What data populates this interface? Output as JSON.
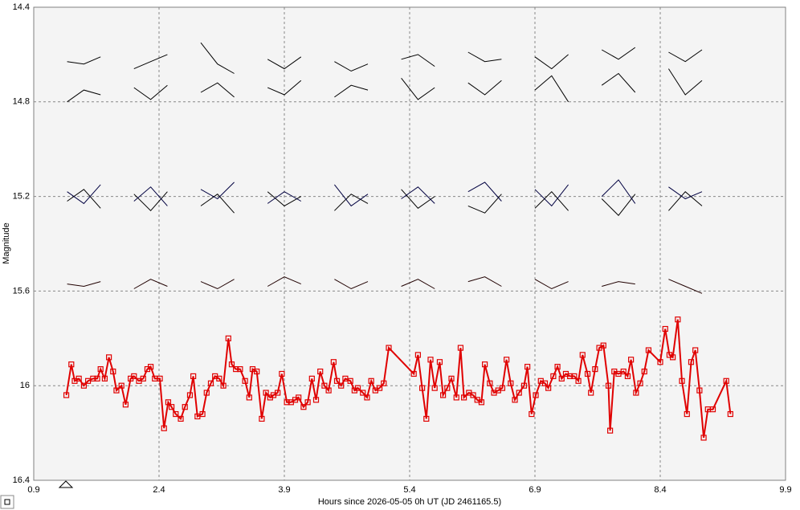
{
  "chart_data": {
    "type": "line",
    "xlabel": "Hours since 2026-05-05 0h UT (JD 2461165.5)",
    "ylabel": "Magnitude",
    "xlim": [
      0.9,
      9.9
    ],
    "xticks": [
      0.9,
      2.4,
      3.9,
      5.4,
      6.9,
      8.4,
      9.9
    ],
    "ylim": [
      16.4,
      14.4
    ],
    "yticks": [
      14.4,
      14.8,
      15.2,
      15.6,
      16,
      16.4
    ],
    "grid": true,
    "series": [
      {
        "color": "#e00000",
        "markers": true,
        "x": [
          1.29,
          1.35,
          1.39,
          1.44,
          1.5,
          1.55,
          1.61,
          1.66,
          1.7,
          1.75,
          1.8,
          1.85,
          1.89,
          1.95,
          2.0,
          2.06,
          2.1,
          2.16,
          2.21,
          2.26,
          2.3,
          2.35,
          2.41,
          2.46,
          2.51,
          2.55,
          2.6,
          2.66,
          2.71,
          2.77,
          2.81,
          2.86,
          2.92,
          2.97,
          3.02,
          3.07,
          3.12,
          3.17,
          3.23,
          3.27,
          3.32,
          3.37,
          3.43,
          3.48,
          3.52,
          3.57,
          3.63,
          3.68,
          3.73,
          3.77,
          3.82,
          3.87,
          3.93,
          3.98,
          4.03,
          4.07,
          4.13,
          4.18,
          4.23,
          4.28,
          4.33,
          4.38,
          4.43,
          4.49,
          4.53,
          4.58,
          4.63,
          4.69,
          4.74,
          4.78,
          4.84,
          4.89,
          4.94,
          4.99,
          5.04,
          5.09,
          5.15,
          5.45,
          5.5,
          5.55,
          5.6,
          5.65,
          5.7,
          5.76,
          5.8,
          5.85,
          5.9,
          5.96,
          6.01,
          6.05,
          6.11,
          6.16,
          6.21,
          6.26,
          6.3,
          6.36,
          6.41,
          6.46,
          6.51,
          6.56,
          6.61,
          6.66,
          6.71,
          6.77,
          6.81,
          6.86,
          6.91,
          6.97,
          7.02,
          7.06,
          7.12,
          7.17,
          7.22,
          7.27,
          7.32,
          7.37,
          7.42,
          7.47,
          7.53,
          7.57,
          7.62,
          7.67,
          7.72,
          7.78,
          7.8,
          7.85,
          7.9,
          7.96,
          8.01,
          8.05,
          8.11,
          8.16,
          8.21,
          8.26,
          8.4,
          8.46,
          8.51,
          8.55,
          8.61,
          8.66,
          8.72,
          8.77,
          8.82,
          8.87,
          8.92,
          8.97,
          9.03,
          9.19,
          9.24
        ],
        "values": [
          16.04,
          15.91,
          15.98,
          15.97,
          16.0,
          15.98,
          15.97,
          15.97,
          15.93,
          15.97,
          15.88,
          15.94,
          16.02,
          16.0,
          16.08,
          15.97,
          15.96,
          15.98,
          15.97,
          15.93,
          15.92,
          15.97,
          15.97,
          16.18,
          16.07,
          16.09,
          16.12,
          16.14,
          16.09,
          16.04,
          15.96,
          16.13,
          16.12,
          16.03,
          15.99,
          15.96,
          15.97,
          16.0,
          15.8,
          15.91,
          15.93,
          15.93,
          15.98,
          16.05,
          15.93,
          15.94,
          16.14,
          16.03,
          16.05,
          16.04,
          16.03,
          15.95,
          16.07,
          16.07,
          16.06,
          16.05,
          16.09,
          16.07,
          15.97,
          16.06,
          15.94,
          16.0,
          16.02,
          15.9,
          15.98,
          16.0,
          15.97,
          15.98,
          16.02,
          16.01,
          16.03,
          16.05,
          15.98,
          16.02,
          16.01,
          15.99,
          15.84,
          15.95,
          15.87,
          16.01,
          16.14,
          15.89,
          16.01,
          15.9,
          16.04,
          16.01,
          15.97,
          16.05,
          15.84,
          16.05,
          16.03,
          16.04,
          16.06,
          16.07,
          15.91,
          15.99,
          16.03,
          16.02,
          16.01,
          15.89,
          15.99,
          16.06,
          16.03,
          16.0,
          15.92,
          16.12,
          16.04,
          15.98,
          15.99,
          16.01,
          15.96,
          15.92,
          15.97,
          15.95,
          15.96,
          15.96,
          15.98,
          15.87,
          15.95,
          16.03,
          15.93,
          15.84,
          15.83,
          16.0,
          16.19,
          15.94,
          15.95,
          15.94,
          15.96,
          15.89,
          16.03,
          15.99,
          15.94,
          15.85,
          15.9,
          15.76,
          15.87,
          15.88,
          15.72,
          15.98,
          16.12,
          15.9,
          15.85,
          16.02,
          16.22,
          16.1,
          16.1,
          15.98,
          16.12
        ]
      },
      {
        "color": "#000000",
        "x": [
          1.3,
          1.5,
          1.7,
          1.9,
          2.1,
          2.3,
          2.5,
          2.7,
          2.9,
          3.1,
          3.3,
          3.5,
          3.7,
          3.9,
          4.1,
          4.3,
          4.5,
          4.7,
          4.9,
          5.1,
          5.3,
          5.5,
          5.7,
          5.9,
          6.1,
          6.3,
          6.5,
          6.7,
          6.9,
          7.1,
          7.3,
          7.5,
          7.7,
          7.9,
          8.1,
          8.3,
          8.5,
          8.7,
          8.9,
          9.1
        ],
        "values": [
          14.63,
          14.64,
          14.61,
          null,
          14.66,
          14.63,
          14.6,
          null,
          14.55,
          14.64,
          14.68,
          null,
          14.62,
          14.66,
          14.61,
          null,
          14.63,
          14.67,
          14.64,
          null,
          14.62,
          14.6,
          14.65,
          null,
          14.59,
          14.63,
          14.62,
          null,
          14.61,
          14.66,
          14.6,
          null,
          14.58,
          14.62,
          14.57,
          null,
          14.59,
          14.63,
          14.58,
          null
        ]
      },
      {
        "color": "#000000",
        "x": [
          1.3,
          1.5,
          1.7,
          1.9,
          2.1,
          2.3,
          2.5,
          2.7,
          2.9,
          3.1,
          3.3,
          3.5,
          3.7,
          3.9,
          4.1,
          4.3,
          4.5,
          4.7,
          4.9,
          5.1,
          5.3,
          5.5,
          5.7,
          5.9,
          6.1,
          6.3,
          6.5,
          6.7,
          6.9,
          7.1,
          7.3,
          7.5,
          7.7,
          7.9,
          8.1,
          8.3,
          8.5,
          8.7,
          8.9,
          9.1
        ],
        "values": [
          14.8,
          14.75,
          14.77,
          null,
          14.74,
          14.79,
          14.73,
          null,
          14.76,
          14.72,
          14.78,
          null,
          14.74,
          14.77,
          14.71,
          null,
          14.78,
          14.73,
          14.75,
          null,
          14.7,
          14.79,
          14.74,
          null,
          14.72,
          14.77,
          14.71,
          null,
          14.75,
          14.69,
          14.8,
          null,
          14.73,
          14.68,
          14.76,
          null,
          14.66,
          14.77,
          14.71,
          null
        ]
      },
      {
        "color": "#000040",
        "x": [
          1.3,
          1.5,
          1.7,
          1.9,
          2.1,
          2.3,
          2.5,
          2.7,
          2.9,
          3.1,
          3.3,
          3.5,
          3.7,
          3.9,
          4.1,
          4.3,
          4.5,
          4.7,
          4.9,
          5.1,
          5.3,
          5.5,
          5.7,
          5.9,
          6.1,
          6.3,
          6.5,
          6.7,
          6.9,
          7.1,
          7.3,
          7.5,
          7.7,
          7.9,
          8.1,
          8.3,
          8.5,
          8.7,
          8.9,
          9.1
        ],
        "values": [
          15.18,
          15.23,
          15.15,
          null,
          15.22,
          15.16,
          15.24,
          null,
          15.17,
          15.21,
          15.14,
          null,
          15.23,
          15.18,
          15.22,
          null,
          15.15,
          15.24,
          15.19,
          null,
          15.21,
          15.16,
          15.23,
          null,
          15.18,
          15.14,
          15.22,
          null,
          15.17,
          15.24,
          15.15,
          null,
          15.2,
          15.13,
          15.23,
          null,
          15.16,
          15.21,
          15.18,
          null
        ]
      },
      {
        "color": "#000000",
        "x": [
          1.3,
          1.5,
          1.7,
          1.9,
          2.1,
          2.3,
          2.5,
          2.7,
          2.9,
          3.1,
          3.3,
          3.5,
          3.7,
          3.9,
          4.1,
          4.3,
          4.5,
          4.7,
          4.9,
          5.1,
          5.3,
          5.5,
          5.7,
          5.9,
          6.1,
          6.3,
          6.5,
          6.7,
          6.9,
          7.1,
          7.3,
          7.5,
          7.7,
          7.9,
          8.1,
          8.3,
          8.5,
          8.7,
          8.9,
          9.1
        ],
        "values": [
          15.22,
          15.17,
          15.25,
          null,
          15.19,
          15.26,
          15.18,
          null,
          15.24,
          15.19,
          15.27,
          null,
          15.18,
          15.24,
          15.2,
          null,
          15.26,
          15.19,
          15.23,
          null,
          15.17,
          15.25,
          15.2,
          null,
          15.24,
          15.27,
          15.19,
          null,
          15.25,
          15.18,
          15.26,
          null,
          15.21,
          15.28,
          15.19,
          null,
          15.26,
          15.18,
          15.24,
          null
        ]
      },
      {
        "color": "#200000",
        "x": [
          1.3,
          1.5,
          1.7,
          1.9,
          2.1,
          2.3,
          2.5,
          2.7,
          2.9,
          3.1,
          3.3,
          3.5,
          3.7,
          3.9,
          4.1,
          4.3,
          4.5,
          4.7,
          4.9,
          5.1,
          5.3,
          5.5,
          5.7,
          5.9,
          6.1,
          6.3,
          6.5,
          6.7,
          6.9,
          7.1,
          7.3,
          7.5,
          7.7,
          7.9,
          8.1,
          8.3,
          8.5,
          8.7,
          8.9,
          9.1
        ],
        "values": [
          15.57,
          15.58,
          15.56,
          null,
          15.59,
          15.55,
          15.58,
          null,
          15.56,
          15.59,
          15.55,
          null,
          15.58,
          15.54,
          15.57,
          null,
          15.55,
          15.59,
          15.56,
          null,
          15.58,
          15.55,
          15.59,
          null,
          15.56,
          15.54,
          15.58,
          null,
          15.55,
          15.59,
          15.56,
          null,
          15.58,
          15.56,
          15.57,
          null,
          15.55,
          15.58,
          15.61,
          null
        ]
      }
    ]
  }
}
